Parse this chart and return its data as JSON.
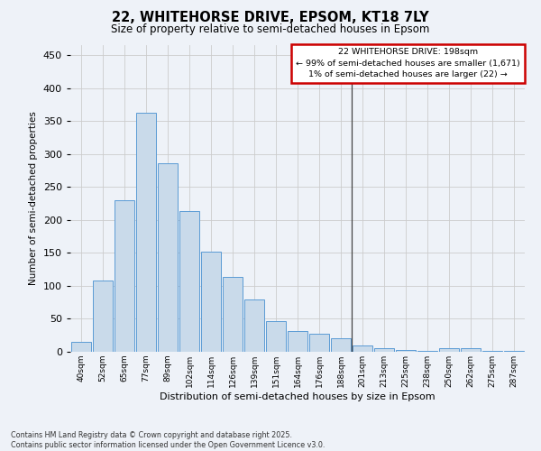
{
  "title": "22, WHITEHORSE DRIVE, EPSOM, KT18 7LY",
  "subtitle": "Size of property relative to semi-detached houses in Epsom",
  "xlabel": "Distribution of semi-detached houses by size in Epsom",
  "ylabel": "Number of semi-detached properties",
  "footer_line1": "Contains HM Land Registry data © Crown copyright and database right 2025.",
  "footer_line2": "Contains public sector information licensed under the Open Government Licence v3.0.",
  "bin_labels": [
    "40sqm",
    "52sqm",
    "65sqm",
    "77sqm",
    "89sqm",
    "102sqm",
    "114sqm",
    "126sqm",
    "139sqm",
    "151sqm",
    "164sqm",
    "176sqm",
    "188sqm",
    "201sqm",
    "213sqm",
    "225sqm",
    "238sqm",
    "250sqm",
    "262sqm",
    "275sqm",
    "287sqm"
  ],
  "bar_values": [
    15,
    108,
    230,
    362,
    286,
    213,
    152,
    113,
    80,
    46,
    32,
    27,
    20,
    10,
    5,
    3,
    1,
    6,
    5,
    1,
    2
  ],
  "bar_color": "#c9daea",
  "bar_edgecolor": "#5b9bd5",
  "vline_x_index": 13,
  "legend_title": "22 WHITEHORSE DRIVE: 198sqm",
  "legend_line1": "← 99% of semi-detached houses are smaller (1,671)",
  "legend_line2": "1% of semi-detached houses are larger (22) →",
  "legend_box_color": "#cc0000",
  "ylim": [
    0,
    465
  ],
  "yticks": [
    0,
    50,
    100,
    150,
    200,
    250,
    300,
    350,
    400,
    450
  ],
  "grid_color": "#cccccc",
  "bg_color": "#eef2f8"
}
